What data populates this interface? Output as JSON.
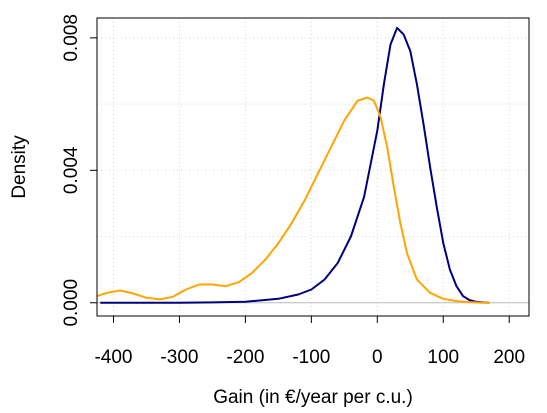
{
  "chart_data": {
    "type": "line",
    "title": "",
    "xlabel": "Gain (in €/year per c.u.)",
    "ylabel": "Density",
    "xlim": [
      -425,
      230
    ],
    "ylim": [
      -0.0004,
      0.0086
    ],
    "grid": true,
    "legend": "none",
    "x_ticks": [
      -400,
      -300,
      -200,
      -100,
      0,
      100,
      200
    ],
    "x_tick_labels": [
      "-400",
      "-300",
      "-200",
      "-100",
      "0",
      "100",
      "200"
    ],
    "y_ticks": [
      0.0,
      0.004,
      0.008
    ],
    "y_tick_labels": [
      "0.000",
      "0.004",
      "0.008"
    ],
    "y_minor_gridlines": [
      0.002,
      0.006
    ],
    "series": [
      {
        "color": "#00007F",
        "x": [
          -420,
          -350,
          -300,
          -250,
          -200,
          -150,
          -120,
          -100,
          -80,
          -60,
          -40,
          -20,
          0,
          10,
          20,
          30,
          40,
          50,
          60,
          70,
          80,
          90,
          100,
          110,
          120,
          130,
          140,
          150,
          160,
          170
        ],
        "y": [
          0.0,
          0.0,
          0.0,
          1e-05,
          3e-05,
          0.00012,
          0.00025,
          0.0004,
          0.0007,
          0.0012,
          0.002,
          0.0032,
          0.0052,
          0.0066,
          0.0078,
          0.0083,
          0.0081,
          0.0076,
          0.0066,
          0.0054,
          0.0041,
          0.0029,
          0.0018,
          0.001,
          0.0005,
          0.0002,
          8e-05,
          3e-05,
          1e-05,
          0.0
        ]
      },
      {
        "color": "#FFA500",
        "x": [
          -425,
          -410,
          -390,
          -370,
          -350,
          -330,
          -310,
          -290,
          -270,
          -250,
          -230,
          -210,
          -190,
          -170,
          -150,
          -130,
          -110,
          -90,
          -70,
          -50,
          -30,
          -15,
          -5,
          5,
          15,
          25,
          35,
          45,
          60,
          80,
          100,
          120,
          140,
          160,
          170
        ],
        "y": [
          0.0002,
          0.0003,
          0.00037,
          0.00028,
          0.00015,
          0.0001,
          0.00018,
          0.0004,
          0.00055,
          0.00055,
          0.0005,
          0.00062,
          0.0009,
          0.0013,
          0.0018,
          0.0024,
          0.0031,
          0.0039,
          0.0047,
          0.0055,
          0.0061,
          0.0062,
          0.0061,
          0.0056,
          0.0047,
          0.0035,
          0.0024,
          0.0015,
          0.0007,
          0.0003,
          0.00012,
          5e-05,
          2e-05,
          0.0,
          0.0
        ]
      }
    ]
  }
}
